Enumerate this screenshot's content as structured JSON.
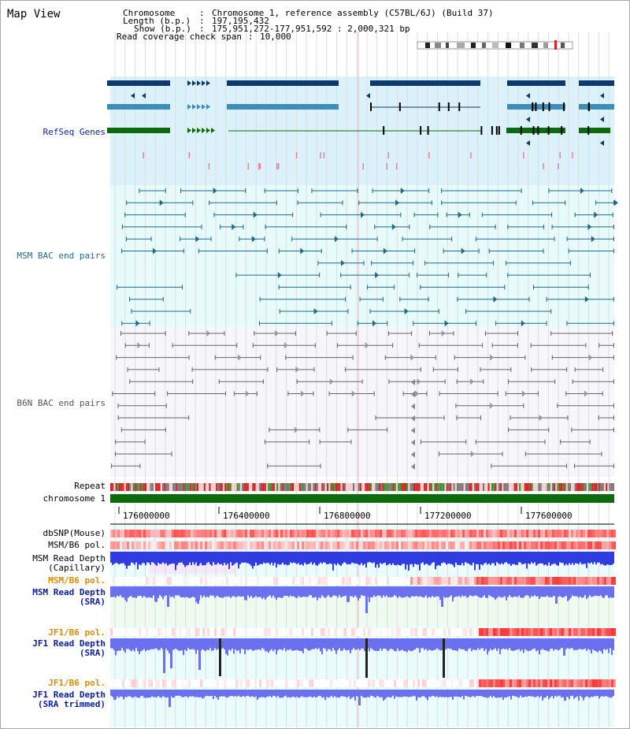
{
  "window": {
    "title": "Map View"
  },
  "header": {
    "chromosome": {
      "label": "Chromosome",
      "value": "Chromosome 1, reference assembly (C57BL/6J) (Build 37)"
    },
    "length": {
      "label": "Length (b.p.)",
      "value": "197,195,432"
    },
    "show": {
      "label": "Show (b.p.)",
      "value": "175,951,272-177,951,592 : 2,000,321 bp"
    },
    "coverage": {
      "label": "Read coverage check span",
      "value": "10,000"
    }
  },
  "tracks": {
    "refseq": {
      "label": "RefSeq Genes"
    },
    "msm_bac": {
      "label": "MSM BAC end pairs"
    },
    "b6n_bac": {
      "label": "B6N BAC end pairs"
    },
    "repeat": {
      "label": "Repeat"
    },
    "chromosome": {
      "label": "chromosome 1"
    },
    "dbsnp": {
      "label": "dbSNP(Mouse)"
    },
    "msm_b6_pol_1": {
      "label": "MSM/B6 pol."
    },
    "msm_depth_cap": {
      "label_line1": "MSM Read Depth",
      "label_line2": "(Capillary)"
    },
    "msm_b6_pol_2": {
      "label": "MSM/B6 pol."
    },
    "msm_depth_sra": {
      "label_line1": "MSM Read Depth",
      "label_line2": "(SRA)"
    },
    "jf1_b6_pol_1": {
      "label": "JF1/B6 pol."
    },
    "jf1_depth_sra": {
      "label_line1": "JF1 Read Depth",
      "label_line2": "(SRA)"
    },
    "jf1_b6_pol_2": {
      "label": "JF1/B6 pol."
    },
    "jf1_depth_trim": {
      "label_line1": "JF1 Read Depth",
      "label_line2": "(SRA trimmed)"
    }
  },
  "axis": {
    "ticks": [
      "176000000",
      "176400000",
      "176800000",
      "177200000",
      "177600000"
    ]
  },
  "colors": {
    "refseq_bg": "#dcf2fb",
    "refseq_dark": "#0d3a6e",
    "refseq_mid": "#3d8db8",
    "refseq_green": "#0b6a0b",
    "msm_bac_bg": "#e8fbfb",
    "msm_bac_line": "#1d6b88",
    "b6n_bac_line": "#666666",
    "chromosome_bar": "#0d6b0d",
    "depth_blue": "#2f3de0",
    "depth_light_blue": "#6a70ee",
    "pol_red": "#e83a3a",
    "label_navy": "#0a1f9e",
    "label_orange": "#e08a00",
    "label_teal": "#1d6b88"
  }
}
